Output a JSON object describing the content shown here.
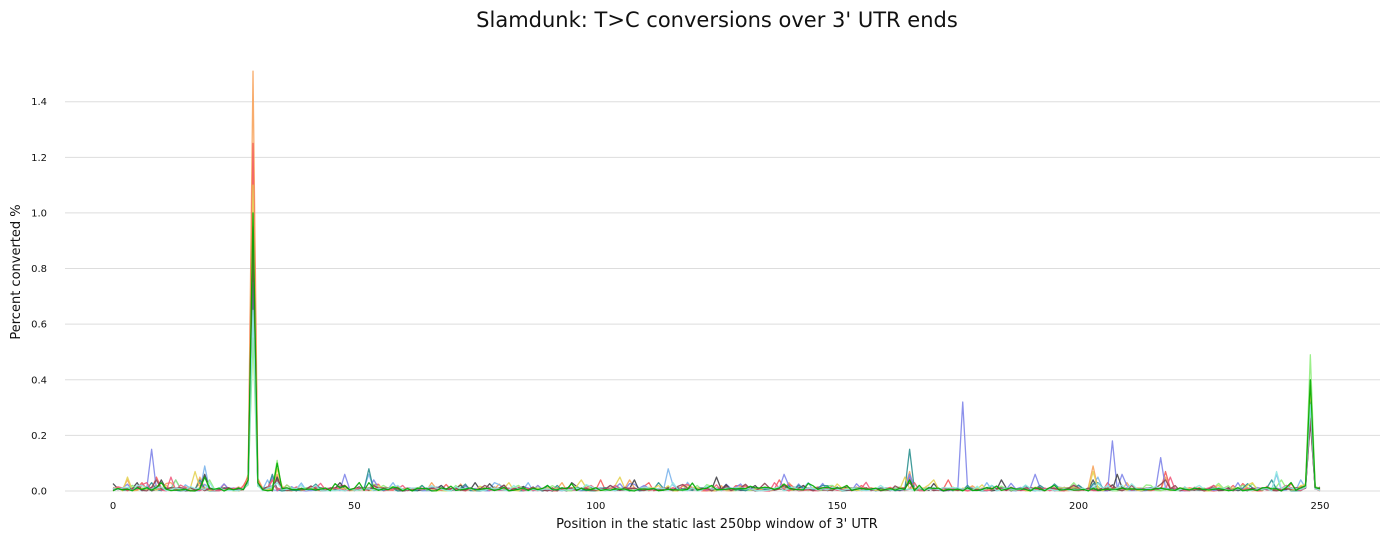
{
  "chart_data": {
    "type": "line",
    "title": "Slamdunk: T>C conversions over 3' UTR ends",
    "xlabel": "Position in the static last 250bp window of 3' UTR",
    "ylabel": "Percent converted %",
    "xlim": [
      -10,
      260
    ],
    "ylim": [
      0,
      1.55
    ],
    "xticks": [
      0,
      50,
      100,
      150,
      200,
      250
    ],
    "yticks": [
      0.0,
      0.2,
      0.4,
      0.6,
      0.8,
      1.0,
      1.2,
      1.4
    ],
    "ytick_labels": [
      "0.0",
      "0.2",
      "0.4",
      "0.6",
      "0.8",
      "1.0",
      "1.2",
      "1.4"
    ],
    "grid": "horizontal",
    "legend": "none",
    "series": [
      {
        "color": "#f7a35c",
        "peaks": [
          [
            3,
            0.04
          ],
          [
            12,
            0.03
          ],
          [
            18,
            0.05
          ],
          [
            29,
            1.51
          ],
          [
            34,
            0.06
          ],
          [
            48,
            0.02
          ],
          [
            66,
            0.03
          ],
          [
            88,
            0.02
          ],
          [
            107,
            0.04
          ],
          [
            119,
            0.02
          ],
          [
            140,
            0.03
          ],
          [
            165,
            0.07
          ],
          [
            203,
            0.09
          ],
          [
            210,
            0.03
          ],
          [
            218,
            0.05
          ],
          [
            248,
            0.35
          ]
        ]
      },
      {
        "color": "#f45b5b",
        "peaks": [
          [
            6,
            0.03
          ],
          [
            9,
            0.05
          ],
          [
            18,
            0.03
          ],
          [
            29,
            1.25
          ],
          [
            33,
            0.04
          ],
          [
            48,
            0.02
          ],
          [
            73,
            0.02
          ],
          [
            101,
            0.04
          ],
          [
            111,
            0.03
          ],
          [
            138,
            0.04
          ],
          [
            165,
            0.05
          ],
          [
            173,
            0.04
          ],
          [
            206,
            0.03
          ],
          [
            218,
            0.07
          ],
          [
            232,
            0.02
          ],
          [
            248,
            0.3
          ]
        ]
      },
      {
        "color": "#7cb5ec",
        "peaks": [
          [
            4,
            0.02
          ],
          [
            19,
            0.09
          ],
          [
            29,
            0.7
          ],
          [
            32,
            0.04
          ],
          [
            53,
            0.06
          ],
          [
            58,
            0.03
          ],
          [
            79,
            0.03
          ],
          [
            86,
            0.03
          ],
          [
            115,
            0.08
          ],
          [
            144,
            0.03
          ],
          [
            165,
            0.06
          ],
          [
            181,
            0.03
          ],
          [
            204,
            0.05
          ],
          [
            241,
            0.06
          ],
          [
            246,
            0.04
          ],
          [
            248,
            0.3
          ]
        ]
      },
      {
        "color": "#8085e9",
        "peaks": [
          [
            8,
            0.15
          ],
          [
            13,
            0.04
          ],
          [
            29,
            0.8
          ],
          [
            33,
            0.05
          ],
          [
            48,
            0.06
          ],
          [
            54,
            0.04
          ],
          [
            88,
            0.02
          ],
          [
            110,
            0.02
          ],
          [
            139,
            0.06
          ],
          [
            165,
            0.06
          ],
          [
            176,
            0.32
          ],
          [
            191,
            0.06
          ],
          [
            207,
            0.18
          ],
          [
            209,
            0.06
          ],
          [
            217,
            0.12
          ],
          [
            233,
            0.03
          ],
          [
            248,
            0.28
          ]
        ]
      },
      {
        "color": "#434348",
        "peaks": [
          [
            5,
            0.03
          ],
          [
            10,
            0.04
          ],
          [
            19,
            0.06
          ],
          [
            29,
            0.85
          ],
          [
            34,
            0.05
          ],
          [
            47,
            0.03
          ],
          [
            68,
            0.02
          ],
          [
            75,
            0.03
          ],
          [
            95,
            0.03
          ],
          [
            108,
            0.04
          ],
          [
            125,
            0.05
          ],
          [
            143,
            0.02
          ],
          [
            165,
            0.04
          ],
          [
            184,
            0.04
          ],
          [
            203,
            0.04
          ],
          [
            208,
            0.06
          ],
          [
            228,
            0.02
          ],
          [
            248,
            0.25
          ]
        ]
      },
      {
        "color": "#90ed7d",
        "peaks": [
          [
            4,
            0.02
          ],
          [
            13,
            0.04
          ],
          [
            20,
            0.04
          ],
          [
            29,
            0.55
          ],
          [
            34,
            0.11
          ],
          [
            56,
            0.02
          ],
          [
            71,
            0.02
          ],
          [
            98,
            0.02
          ],
          [
            121,
            0.02
          ],
          [
            149,
            0.02
          ],
          [
            166,
            0.03
          ],
          [
            199,
            0.03
          ],
          [
            215,
            0.02
          ],
          [
            242,
            0.04
          ],
          [
            248,
            0.49
          ]
        ]
      },
      {
        "color": "#2b908f",
        "peaks": [
          [
            8,
            0.03
          ],
          [
            18,
            0.04
          ],
          [
            29,
            0.75
          ],
          [
            33,
            0.06
          ],
          [
            53,
            0.08
          ],
          [
            64,
            0.02
          ],
          [
            92,
            0.02
          ],
          [
            113,
            0.03
          ],
          [
            147,
            0.02
          ],
          [
            165,
            0.15
          ],
          [
            189,
            0.02
          ],
          [
            204,
            0.03
          ],
          [
            240,
            0.04
          ],
          [
            248,
            0.32
          ]
        ]
      },
      {
        "color": "#e4d354",
        "peaks": [
          [
            3,
            0.05
          ],
          [
            11,
            0.02
          ],
          [
            17,
            0.07
          ],
          [
            29,
            1.1
          ],
          [
            34,
            0.08
          ],
          [
            55,
            0.02
          ],
          [
            82,
            0.03
          ],
          [
            97,
            0.04
          ],
          [
            105,
            0.05
          ],
          [
            131,
            0.02
          ],
          [
            164,
            0.05
          ],
          [
            170,
            0.04
          ],
          [
            203,
            0.07
          ],
          [
            236,
            0.03
          ],
          [
            248,
            0.38
          ]
        ]
      },
      {
        "color": "#f15c80",
        "peaks": [
          [
            7,
            0.03
          ],
          [
            12,
            0.05
          ],
          [
            29,
            0.95
          ],
          [
            33,
            0.04
          ],
          [
            60,
            0.02
          ],
          [
            99,
            0.02
          ],
          [
            118,
            0.02
          ],
          [
            137,
            0.03
          ],
          [
            166,
            0.03
          ],
          [
            219,
            0.05
          ],
          [
            243,
            0.02
          ],
          [
            248,
            0.27
          ]
        ]
      },
      {
        "color": "#8d4653",
        "peaks": [
          [
            9,
            0.04
          ],
          [
            29,
            0.9
          ],
          [
            34,
            0.04
          ],
          [
            48,
            0.02
          ],
          [
            77,
            0.02
          ],
          [
            103,
            0.02
          ],
          [
            139,
            0.02
          ],
          [
            165,
            0.03
          ],
          [
            218,
            0.04
          ],
          [
            248,
            0.26
          ]
        ]
      },
      {
        "color": "#91e8e1",
        "peaks": [
          [
            6,
            0.02
          ],
          [
            20,
            0.03
          ],
          [
            29,
            0.65
          ],
          [
            34,
            0.03
          ],
          [
            42,
            0.02
          ],
          [
            83,
            0.02
          ],
          [
            116,
            0.03
          ],
          [
            159,
            0.02
          ],
          [
            182,
            0.02
          ],
          [
            225,
            0.02
          ],
          [
            241,
            0.07
          ],
          [
            248,
            0.31
          ]
        ]
      },
      {
        "color": "#00aa00",
        "peaks": [
          [
            10,
            0.03
          ],
          [
            19,
            0.05
          ],
          [
            29,
            1.0
          ],
          [
            34,
            0.1
          ],
          [
            53,
            0.03
          ],
          [
            90,
            0.02
          ],
          [
            124,
            0.02
          ],
          [
            152,
            0.02
          ],
          [
            165,
            0.04
          ],
          [
            195,
            0.02
          ],
          [
            248,
            0.4
          ]
        ]
      }
    ]
  }
}
